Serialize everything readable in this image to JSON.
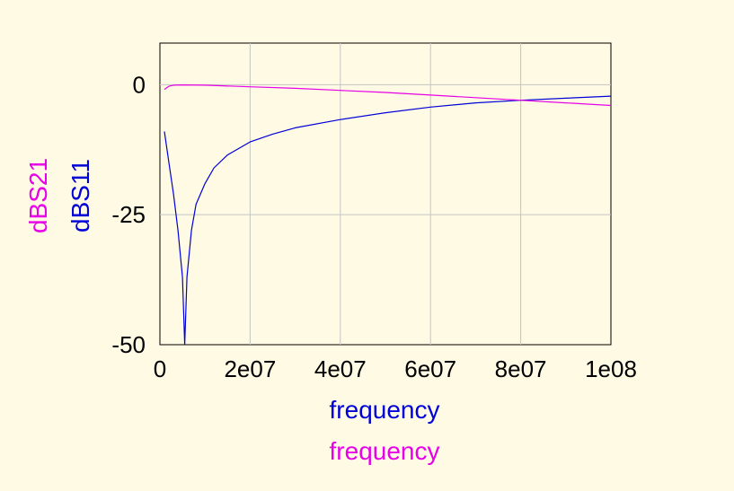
{
  "chart_data": {
    "type": "line",
    "title": "",
    "xlabels": [
      "frequency",
      "frequency"
    ],
    "ylabels": [
      "dBS21",
      "dBS11"
    ],
    "xlim": [
      0,
      100000000
    ],
    "ylim": [
      -50,
      8
    ],
    "x_ticks": [
      0,
      20000000,
      40000000,
      60000000,
      80000000,
      100000000
    ],
    "x_tick_labels": [
      "0",
      "2e07",
      "4e07",
      "6e07",
      "8e07",
      "1e08"
    ],
    "y_ticks": [
      0,
      -25,
      -50
    ],
    "y_tick_labels": [
      "0",
      "-25",
      "-50"
    ],
    "grid": true,
    "series": [
      {
        "name": "dBS11",
        "color": "#0000d8",
        "x": [
          1000000,
          2000000,
          3000000,
          4000000,
          5000000,
          5500000,
          6000000,
          7000000,
          8000000,
          10000000,
          12000000,
          15000000,
          20000000,
          25000000,
          30000000,
          40000000,
          50000000,
          60000000,
          70000000,
          80000000,
          90000000,
          100000000
        ],
        "y": [
          -9,
          -15,
          -21,
          -28,
          -37,
          -50,
          -37,
          -28,
          -23,
          -19,
          -16,
          -13.5,
          -11,
          -9.5,
          -8.3,
          -6.7,
          -5.4,
          -4.3,
          -3.5,
          -3,
          -2.6,
          -2.2
        ]
      },
      {
        "name": "dBS21",
        "color": "#e800e8",
        "x": [
          1000000,
          2000000,
          3000000,
          5000000,
          10000000,
          20000000,
          30000000,
          40000000,
          50000000,
          60000000,
          70000000,
          80000000,
          90000000,
          100000000
        ],
        "y": [
          -0.9,
          -0.3,
          -0.1,
          -0.05,
          -0.1,
          -0.4,
          -0.7,
          -1.1,
          -1.5,
          -2,
          -2.5,
          -3,
          -3.5,
          -4
        ]
      }
    ]
  }
}
